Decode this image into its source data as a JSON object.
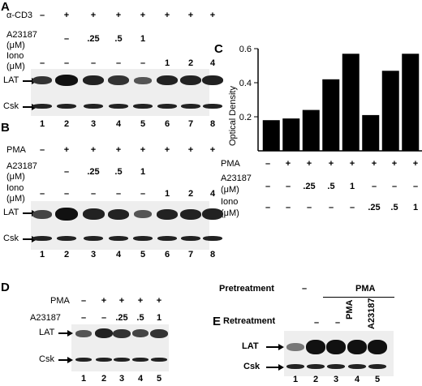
{
  "panelA": {
    "letter": "A",
    "rows": [
      {
        "label": "α-CD3",
        "values": [
          "–",
          "+",
          "+",
          "+",
          "+",
          "+",
          "+",
          "+"
        ]
      },
      {
        "label": "A23187",
        "label2": "(μM)",
        "values": [
          "",
          "–",
          ".25",
          ".5",
          "1",
          "",
          "",
          ""
        ]
      },
      {
        "label": "Iono",
        "label2": "(μM)",
        "values": [
          "–",
          "–",
          "–",
          "–",
          "–",
          "1",
          "2",
          "4"
        ]
      }
    ],
    "blot_labels": [
      "LAT",
      "Csk"
    ],
    "lanes": [
      "1",
      "2",
      "3",
      "4",
      "5",
      "6",
      "7",
      "8"
    ]
  },
  "panelB": {
    "letter": "B",
    "rows": [
      {
        "label": "PMA",
        "values": [
          "–",
          "+",
          "+",
          "+",
          "+",
          "+",
          "+",
          "+"
        ]
      },
      {
        "label": "A23187",
        "label2": "(μM)",
        "values": [
          "",
          "–",
          ".25",
          ".5",
          "1",
          "",
          "",
          ""
        ]
      },
      {
        "label": "Iono",
        "label2": "(μM)",
        "values": [
          "–",
          "–",
          "–",
          "–",
          "–",
          "1",
          "2",
          "4"
        ]
      }
    ],
    "blot_labels": [
      "LAT",
      "Csk"
    ],
    "lanes": [
      "1",
      "2",
      "3",
      "4",
      "5",
      "6",
      "7",
      "8"
    ]
  },
  "panelC": {
    "letter": "C",
    "chart_data": {
      "type": "bar",
      "ylabel": "Optical Density",
      "ylim": [
        0,
        0.6
      ],
      "yticks": [
        "0.2",
        "0.4",
        "0.6"
      ],
      "values": [
        0.18,
        0.19,
        0.24,
        0.42,
        0.57,
        0.21,
        0.47,
        0.57
      ],
      "bar_color": "#000000"
    },
    "rows": [
      {
        "label": "PMA",
        "values": [
          "–",
          "+",
          "+",
          "+",
          "+",
          "+",
          "+",
          "+"
        ]
      },
      {
        "label": "A23187",
        "label2": "(μM)",
        "values": [
          "–",
          "–",
          ".25",
          ".5",
          "1",
          "–",
          "–",
          "–"
        ]
      },
      {
        "label": "Iono",
        "label2": "(μM)",
        "values": [
          "–",
          "–",
          "–",
          "–",
          "–",
          ".25",
          ".5",
          "1"
        ]
      }
    ]
  },
  "panelD": {
    "letter": "D",
    "rows": [
      {
        "label": "PMA",
        "values": [
          "–",
          "+",
          "+",
          "+",
          "+"
        ]
      },
      {
        "label": "A23187",
        "values": [
          "–",
          "–",
          ".25",
          ".5",
          "1"
        ]
      }
    ],
    "blot_labels": [
      "LAT",
      "Csk"
    ],
    "lanes": [
      "1",
      "2",
      "3",
      "4",
      "5"
    ]
  },
  "panelE": {
    "letter": "E",
    "pretreatment_label": "Pretreatment",
    "pretreatment_none": "–",
    "pretreatment_value": "PMA",
    "retreatment_label": "Retreatment",
    "retreatment_values": [
      "–",
      "–",
      "PMA",
      "A23187"
    ],
    "blot_labels": [
      "LAT",
      "Csk"
    ],
    "lanes": [
      "1",
      "2",
      "3",
      "4",
      "5"
    ]
  }
}
